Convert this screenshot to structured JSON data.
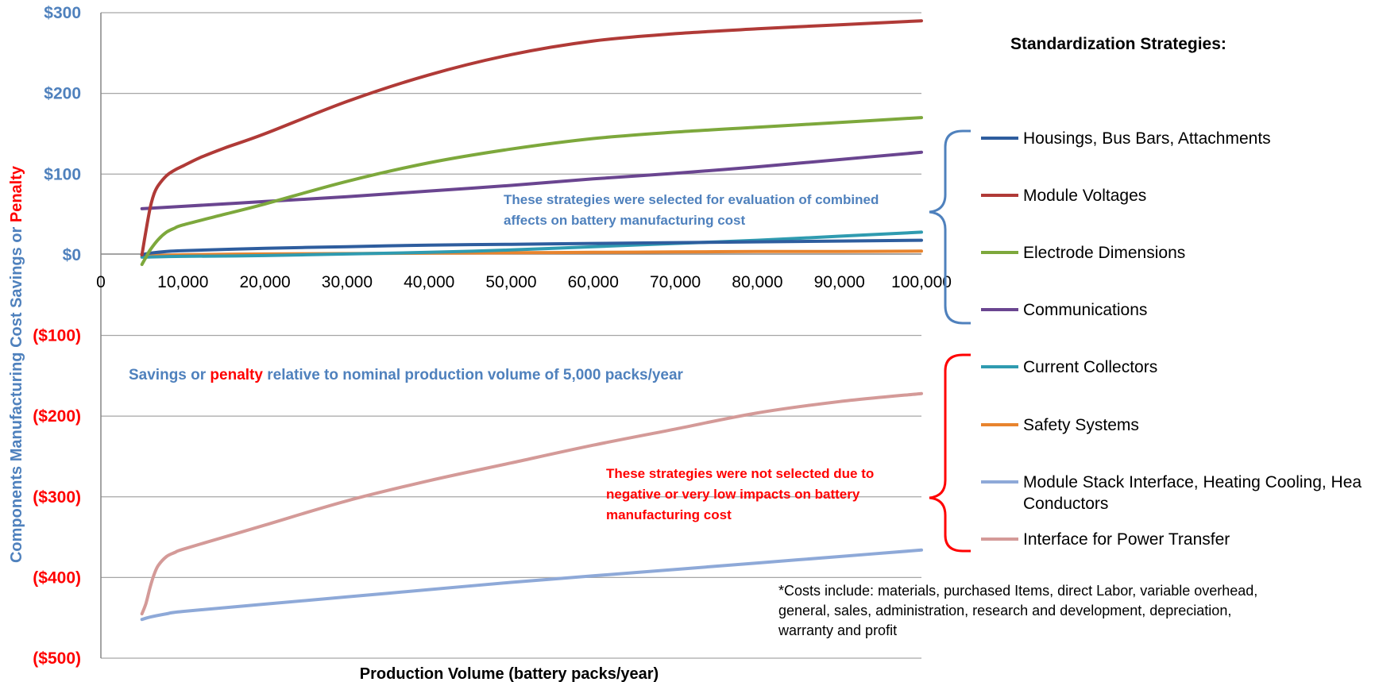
{
  "colors": {
    "savings_blue": "#4f81bd",
    "penalty_red": "#ff0000",
    "gridline": "#a6a6a6",
    "bracket_blue": "#4f81bd",
    "bracket_red": "#ff0000"
  },
  "labels": {
    "ylabel_part1": "Components Manufacturing Cost Savings or ",
    "ylabel_part2": "Penalty",
    "xlabel": "Production Volume (battery packs/year)",
    "legend_title": "Standardization Strategies:",
    "note_selected_line1": "These strategies were selected for evaluation of combined",
    "note_selected_line2": "affects on battery manufacturing cost",
    "note_nominal_part1": "Savings or ",
    "note_nominal_part2": "penalty",
    "note_nominal_part3": " relative to nominal production volume of 5,000 packs/year",
    "note_not_selected_line1": "These strategies were not selected due to",
    "note_not_selected_line2": "negative or very low impacts on battery",
    "note_not_selected_line3": "manufacturing cost",
    "footnote_line1": "*Costs include: materials, purchased Items, direct Labor, variable overhead,",
    "footnote_line2": "general, sales, administration, research and development, depreciation,",
    "footnote_line3": "warranty and profit"
  },
  "chart_data": {
    "type": "line",
    "xlabel": "Production Volume (battery packs/year)",
    "ylabel": "Components Manufacturing Cost Savings or Penalty",
    "xlim": [
      0,
      100000
    ],
    "ylim": [
      -500,
      300
    ],
    "x_ticks": [
      {
        "v": 0,
        "label": "0"
      },
      {
        "v": 10000,
        "label": "10,000"
      },
      {
        "v": 20000,
        "label": "20,000"
      },
      {
        "v": 30000,
        "label": "30,000"
      },
      {
        "v": 40000,
        "label": "40,000"
      },
      {
        "v": 50000,
        "label": "50,000"
      },
      {
        "v": 60000,
        "label": "60,000"
      },
      {
        "v": 70000,
        "label": "70,000"
      },
      {
        "v": 80000,
        "label": "80,000"
      },
      {
        "v": 90000,
        "label": "90,000"
      },
      {
        "v": 100000,
        "label": "100,000"
      }
    ],
    "y_ticks": [
      {
        "v": 300,
        "label": "$300",
        "color": "#4f81bd"
      },
      {
        "v": 200,
        "label": "$200",
        "color": "#4f81bd"
      },
      {
        "v": 100,
        "label": "$100",
        "color": "#4f81bd"
      },
      {
        "v": 0,
        "label": "$0",
        "color": "#4f81bd"
      },
      {
        "v": -100,
        "label": "($100)",
        "color": "#ff0000"
      },
      {
        "v": -200,
        "label": "($200)",
        "color": "#ff0000"
      },
      {
        "v": -300,
        "label": "($300)",
        "color": "#ff0000"
      },
      {
        "v": -400,
        "label": "($400)",
        "color": "#ff0000"
      },
      {
        "v": -500,
        "label": "($500)",
        "color": "#ff0000"
      }
    ],
    "grid": true,
    "legend_position": "right",
    "series": [
      {
        "name": "Housings, Bus Bars, Attachments",
        "color": "#2e5d9e",
        "x": [
          5000,
          6000,
          8000,
          10000,
          20000,
          30000,
          40000,
          50000,
          60000,
          70000,
          80000,
          90000,
          100000
        ],
        "y": [
          0,
          2,
          4,
          5,
          8,
          10,
          12,
          13,
          14,
          15,
          16,
          17,
          18
        ]
      },
      {
        "name": "Module Voltages",
        "color": "#b03a37",
        "x": [
          5000,
          5500,
          6000,
          6500,
          7000,
          8000,
          9000,
          10000,
          12000,
          15000,
          20000,
          30000,
          40000,
          50000,
          60000,
          70000,
          80000,
          90000,
          100000
        ],
        "y": [
          0,
          30,
          58,
          76,
          86,
          98,
          105,
          110,
          120,
          132,
          150,
          190,
          223,
          248,
          265,
          274,
          280,
          285,
          290
        ]
      },
      {
        "name": "Electrode Dimensions",
        "color": "#7da83c",
        "x": [
          5000,
          5500,
          6000,
          7000,
          8000,
          9000,
          10000,
          15000,
          20000,
          30000,
          40000,
          50000,
          60000,
          70000,
          80000,
          90000,
          100000
        ],
        "y": [
          -12,
          -3,
          6,
          19,
          28,
          33,
          37,
          50,
          63,
          91,
          114,
          131,
          144,
          152,
          158,
          164,
          170
        ]
      },
      {
        "name": "Communications",
        "color": "#6a4590",
        "x": [
          5000,
          10000,
          20000,
          30000,
          40000,
          50000,
          60000,
          70000,
          80000,
          90000,
          100000
        ],
        "y": [
          57,
          60,
          66,
          72,
          79,
          86,
          94,
          101,
          109,
          118,
          127
        ]
      },
      {
        "name": "Current Collectors",
        "color": "#2f9bb0",
        "x": [
          5000,
          10000,
          20000,
          30000,
          40000,
          50000,
          60000,
          70000,
          80000,
          90000,
          100000
        ],
        "y": [
          -3,
          -2,
          -1,
          1,
          3,
          6,
          10,
          14,
          18,
          23,
          28
        ]
      },
      {
        "name": "Safety Systems",
        "color": "#e8842e",
        "x": [
          5000,
          10000,
          20000,
          30000,
          40000,
          50000,
          60000,
          70000,
          80000,
          90000,
          100000
        ],
        "y": [
          -2,
          0,
          1,
          1.5,
          2,
          2.5,
          3,
          3.5,
          4,
          4,
          4.5
        ]
      },
      {
        "name": "Module Stack Interface, Heating Cooling, Hea Conductors",
        "color": "#8ea9d8",
        "x": [
          5000,
          6000,
          8000,
          10000,
          20000,
          30000,
          40000,
          50000,
          60000,
          70000,
          80000,
          90000,
          100000
        ],
        "y": [
          -452,
          -449,
          -445,
          -442,
          -433,
          -424,
          -415,
          -406,
          -398,
          -390,
          -382,
          -374,
          -366
        ]
      },
      {
        "name": "Interface for Power Transfer",
        "color": "#d49a98",
        "x": [
          5000,
          5500,
          6000,
          6500,
          7000,
          8000,
          9000,
          10000,
          15000,
          20000,
          30000,
          40000,
          50000,
          60000,
          70000,
          80000,
          90000,
          100000
        ],
        "y": [
          -445,
          -432,
          -412,
          -396,
          -385,
          -374,
          -369,
          -365,
          -350,
          -335,
          -305,
          -280,
          -258,
          -236,
          -216,
          -196,
          -182,
          -172
        ]
      }
    ]
  }
}
